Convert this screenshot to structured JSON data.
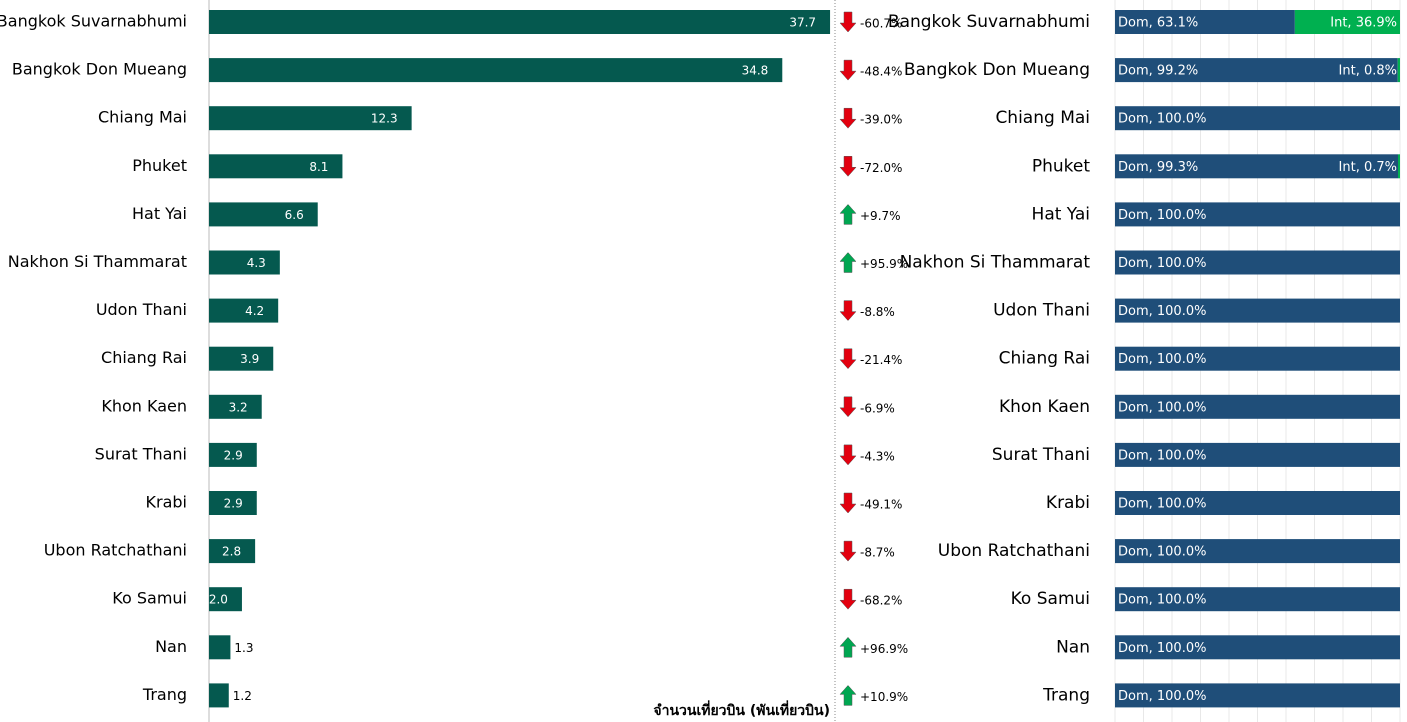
{
  "chart_data": [
    {
      "type": "hbar",
      "categories": [
        "Bangkok Suvarnabhumi",
        "Bangkok Don Mueang",
        "Chiang Mai",
        "Phuket",
        "Hat Yai",
        "Nakhon Si Thammarat",
        "Udon Thani",
        "Chiang Rai",
        "Khon Kaen",
        "Surat Thani",
        "Krabi",
        "Ubon Ratchathani",
        "Ko Samui",
        "Nan",
        "Trang"
      ],
      "values": [
        37.7,
        34.8,
        12.3,
        8.1,
        6.6,
        4.3,
        4.2,
        3.9,
        3.2,
        2.9,
        2.9,
        2.8,
        2.0,
        1.3,
        1.2
      ],
      "value_labels": [
        "37.7",
        "34.8",
        "12.3",
        "8.1",
        "6.6",
        "4.3",
        "4.2",
        "3.9",
        "3.2",
        "2.9",
        "2.9",
        "2.8",
        "2.0",
        "1.3",
        "1.2"
      ],
      "color": "#05594f",
      "xlim": [
        0,
        38
      ],
      "x_label": "จำนวนเที่ยวบิน (พันเที่ยวบิน)",
      "change": {
        "values": [
          -60.7,
          -48.4,
          -39.0,
          -72.0,
          9.7,
          95.9,
          -8.8,
          -21.4,
          -6.9,
          -4.3,
          -49.1,
          -8.7,
          -68.2,
          96.9,
          10.9
        ],
        "value_labels": [
          "-60.7%",
          "-48.4%",
          "-39.0%",
          "-72.0%",
          "+9.7%",
          "+95.9%",
          "-8.8%",
          "-21.4%",
          "-6.9%",
          "-4.3%",
          "-49.1%",
          "-8.7%",
          "-68.2%",
          "+96.9%",
          "+10.9%"
        ],
        "up_color": "#00a651",
        "down_color": "#e3000f"
      }
    },
    {
      "type": "stacked_hbar",
      "categories": [
        "Bangkok Suvarnabhumi",
        "Bangkok Don Mueang",
        "Chiang Mai",
        "Phuket",
        "Hat Yai",
        "Nakhon Si Thammarat",
        "Udon Thani",
        "Chiang Rai",
        "Khon Kaen",
        "Surat Thani",
        "Krabi",
        "Ubon Ratchathani",
        "Ko Samui",
        "Nan",
        "Trang"
      ],
      "series": [
        {
          "color": "#1f4e79",
          "values": [
            63.1,
            99.2,
            100.0,
            99.3,
            100.0,
            100.0,
            100.0,
            100.0,
            100.0,
            100.0,
            100.0,
            100.0,
            100.0,
            100.0,
            100.0
          ],
          "value_labels": [
            "Dom, 63.1%",
            "Dom, 99.2%",
            "Dom, 100.0%",
            "Dom, 99.3%",
            "Dom, 100.0%",
            "Dom, 100.0%",
            "Dom, 100.0%",
            "Dom, 100.0%",
            "Dom, 100.0%",
            "Dom, 100.0%",
            "Dom, 100.0%",
            "Dom, 100.0%",
            "Dom, 100.0%",
            "Dom, 100.0%",
            "Dom, 100.0%"
          ]
        },
        {
          "color": "#00b050",
          "values": [
            36.9,
            0.8,
            null,
            0.7,
            null,
            null,
            null,
            null,
            null,
            null,
            null,
            null,
            null,
            null,
            null
          ],
          "value_labels": [
            "Int, 36.9%",
            "Int, 0.8%",
            null,
            "Int, 0.7%",
            null,
            null,
            null,
            null,
            null,
            null,
            null,
            null,
            null,
            null,
            null
          ]
        }
      ],
      "xlim": [
        0,
        100
      ],
      "xticks": [
        0,
        10,
        20,
        30,
        40,
        50,
        60,
        70,
        80,
        90,
        100
      ],
      "grid": true
    }
  ]
}
